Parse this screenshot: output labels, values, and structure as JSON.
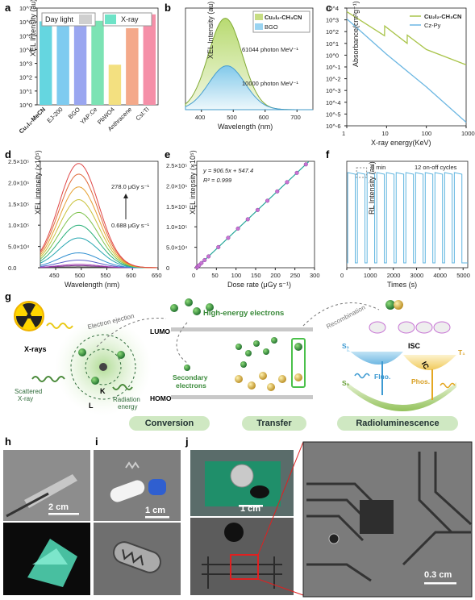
{
  "panel_letters": [
    "a",
    "b",
    "c",
    "d",
    "e",
    "f",
    "g",
    "h",
    "i",
    "j"
  ],
  "colors": {
    "green": "#9ccc65",
    "blue": "#81d4fa",
    "teal": "#26a69a",
    "purple": "#c774d4",
    "sky": "#5fb5e0",
    "olive": "#9bb634"
  },
  "chart_data": [
    {
      "panel": "a",
      "type": "bar",
      "ylabel": "XEL Intensity (au)",
      "yscale": "log",
      "ylim": [
        1,
        10000000
      ],
      "yticks": [
        "10^0",
        "10^1",
        "10^2",
        "10^3",
        "10^4",
        "10^5",
        "10^6",
        "10^7"
      ],
      "categories": [
        "Cu₂I₂-MeCN",
        "EJ-200",
        "BGO",
        "YAP:Ce",
        "PbWO4",
        "Anthracene",
        "CsI:Tl"
      ],
      "values": [
        1100000,
        550000,
        850000,
        1200000,
        800,
        350000,
        3500000
      ],
      "colors": [
        "#65d6e0",
        "#7ecbf0",
        "#9aa6f0",
        "#7ce3b4",
        "#f3e080",
        "#f4a98a",
        "#f58fa8"
      ],
      "legend": [
        "Day light",
        "X-ray"
      ]
    },
    {
      "panel": "b",
      "type": "area",
      "xlabel": "Wavelength (nm)",
      "ylabel": "XEL Intensity (au)",
      "xlim": [
        350,
        750
      ],
      "xticks": [
        400,
        500,
        600,
        700
      ],
      "series": [
        {
          "name": "Cu₂I₂-CH₃CN",
          "peak": 475,
          "width": 75,
          "amp": 1.0,
          "annotation": "61044 photon MeV⁻¹"
        },
        {
          "name": "BGO",
          "peak": 480,
          "width": 80,
          "amp": 0.48,
          "annotation": "10000 photon MeV⁻¹"
        }
      ]
    },
    {
      "panel": "c",
      "type": "line",
      "xscale": "log",
      "yscale": "log",
      "xlabel": "X-ray energy(KeV)",
      "ylabel": "Absorbance(cm²g⁻¹)",
      "xlim": [
        1,
        1000
      ],
      "ylim": [
        1e-06,
        10000
      ],
      "xticks": [
        "1",
        "10",
        "100",
        "1000"
      ],
      "yticks": [
        "10^4",
        "10^3",
        "10^2",
        "10^1",
        "10^0",
        "10^-1",
        "10^-2",
        "10^-3",
        "10^-4",
        "10^-5",
        "10^-6"
      ],
      "series": [
        {
          "name": "Cu₂I₂-CH₃CN",
          "x": [
            1,
            8.9,
            8.95,
            33,
            33.2,
            100,
            1000
          ],
          "y": [
            5000,
            45,
            300,
            10,
            50,
            3,
            0.15
          ]
        },
        {
          "name": "Cz-Py",
          "x": [
            1,
            10,
            100,
            1000
          ],
          "y": [
            1200,
            1.2,
            0.002,
            2e-06
          ]
        }
      ]
    },
    {
      "panel": "d",
      "type": "line",
      "xlabel": "Wavelength (nm)",
      "ylabel": "XEL intensity (×10⁵)",
      "xlim": [
        420,
        650
      ],
      "ylim": [
        0,
        250000
      ],
      "xticks": [
        450,
        500,
        550,
        600,
        650
      ],
      "yticks": [
        "0.0",
        "5.0×10⁴",
        "1.0×10⁵",
        "1.5×10⁵",
        "2.0×10⁵",
        "2.5×10⁵"
      ],
      "annotations": [
        "278.0 μGy s⁻¹",
        "0.688 μGy s⁻¹"
      ],
      "peaks": [
        2000,
        5000,
        8000,
        18000,
        35000,
        70000,
        100000,
        130000,
        160000,
        190000,
        220000,
        245000
      ]
    },
    {
      "panel": "e",
      "type": "scatter",
      "xlabel": "Dose rate (μGy s⁻¹)",
      "ylabel": "XEL intensity (×10⁵)",
      "xlim": [
        0,
        300
      ],
      "ylim": [
        0,
        260000
      ],
      "xticks": [
        0,
        50,
        100,
        150,
        200,
        250,
        300
      ],
      "yticks": [
        "0",
        "5.0×10⁴",
        "1.0×10⁵",
        "1.5×10⁵",
        "2.0×10⁵",
        "2.5×10⁵"
      ],
      "fit": {
        "slope": 906.5,
        "intercept": 547.4,
        "equation": "y = 906.5x + 547.4",
        "r2": "R² = 0.999"
      },
      "x": [
        0.688,
        3,
        6,
        12,
        20,
        30,
        55,
        80,
        105,
        130,
        155,
        180,
        205,
        230,
        255,
        278
      ],
      "y": [
        1200,
        3300,
        6000,
        11500,
        18700,
        27700,
        50400,
        73100,
        95700,
        118400,
        141100,
        163700,
        186400,
        209000,
        231700,
        252500
      ]
    },
    {
      "panel": "f",
      "type": "line",
      "xlabel": "Times (s)",
      "ylabel": "RL Intensity (au)",
      "xlim": [
        0,
        5200
      ],
      "xticks": [
        0,
        1000,
        2000,
        3000,
        4000,
        5000
      ],
      "annotations": [
        "5 min",
        "12 on-off cycles"
      ],
      "cycles": 12
    }
  ],
  "panel_g": {
    "labels": {
      "xrays": "X-rays",
      "scattered": "Scattered\nX-ray",
      "radiation": "Radiation\nenergy",
      "ejection": "Electron ejection",
      "lumo": "LUMO",
      "homo": "HOMO",
      "k": "K",
      "l": "L",
      "high_energy": "High-energy electrons",
      "secondary": "Secondary\nelectrons",
      "recombination": "Recombination",
      "s1": "S₁",
      "s0": "S₀",
      "t1": "T₁",
      "isc": "ISC",
      "ic": "IC",
      "fluo": "Fluo.",
      "phos": "Phos."
    },
    "stages": [
      "Conversion",
      "Transfer",
      "Radioluminescence"
    ]
  },
  "scale_bars": {
    "h": "2 cm",
    "i": "1 cm",
    "j": "1 cm",
    "zoom": "0.3 cm"
  }
}
